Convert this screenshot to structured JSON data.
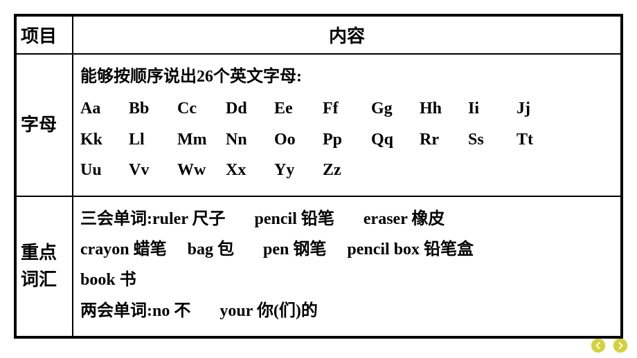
{
  "table": {
    "headers": {
      "col1": "项目",
      "col2": "内容"
    },
    "rows": {
      "letters": {
        "label": "字母",
        "intro": "能够按顺序说出26个英文字母:",
        "line1": [
          "Aa",
          "Bb",
          "Cc",
          "Dd",
          "Ee",
          "Ff",
          "Gg",
          "Hh",
          "Ii",
          "Jj"
        ],
        "line2": [
          "Kk",
          "Ll",
          "Mm",
          "Nn",
          "Oo",
          "Pp",
          "Qq",
          "Rr",
          "Ss",
          "Tt"
        ],
        "line3": [
          "Uu",
          "Vv",
          "Ww",
          "Xx",
          "Yy",
          "Zz"
        ]
      },
      "vocab": {
        "label": "重点词汇",
        "three_skill_prefix": "三会单词:",
        "three_skill": [
          {
            "en": "ruler",
            "zh": "尺子"
          },
          {
            "en": "pencil",
            "zh": "铅笔"
          },
          {
            "en": "eraser",
            "zh": "橡皮"
          },
          {
            "en": "crayon",
            "zh": "蜡笔"
          },
          {
            "en": "bag",
            "zh": "包"
          },
          {
            "en": "pen",
            "zh": "钢笔"
          },
          {
            "en": "pencil box",
            "zh": "铅笔盒"
          },
          {
            "en": "book",
            "zh": "书"
          }
        ],
        "two_skill_prefix": "两会单词:",
        "two_skill": [
          {
            "en": "no",
            "zh": "不"
          },
          {
            "en": "your",
            "zh": "你(们)的"
          }
        ]
      }
    }
  },
  "nav": {
    "prev_color": "#d4d13a",
    "next_color": "#d4d13a"
  }
}
